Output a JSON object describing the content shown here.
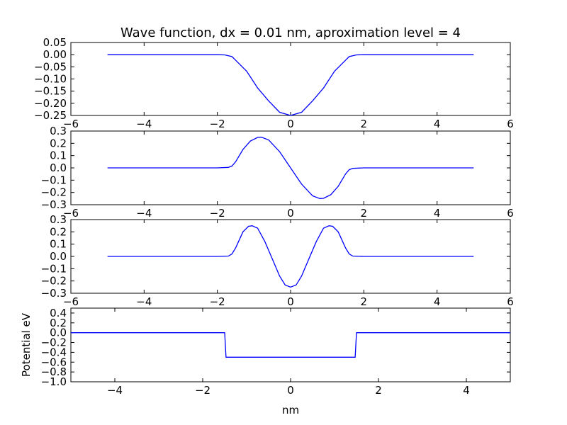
{
  "title": "Wave function, dx = 0.01 nm, aproximation level = 4",
  "colors": {
    "line": "#0000ff",
    "axes": "#000000",
    "background": "#ffffff"
  },
  "chart_data": [
    {
      "type": "line",
      "xlim": [
        -6,
        6
      ],
      "ylim": [
        -0.25,
        0.05
      ],
      "xticks": [
        -6,
        -4,
        -2,
        0,
        2,
        4,
        6
      ],
      "xtick_labels": [
        "−6",
        "−4",
        "−2",
        "0",
        "2",
        "4",
        "6"
      ],
      "yticks": [
        -0.25,
        -0.2,
        -0.15,
        -0.1,
        -0.05,
        0.0,
        0.05
      ],
      "ytick_labels": [
        "−0.25",
        "−0.20",
        "−0.15",
        "−0.10",
        "−0.05",
        "0.00",
        "0.05"
      ],
      "xlabel": "",
      "ylabel": "",
      "x": [
        -5,
        -4,
        -3,
        -2,
        -1.8,
        -1.6,
        -1.5,
        -1.2,
        -0.9,
        -0.6,
        -0.3,
        0,
        0.3,
        0.6,
        0.9,
        1.2,
        1.5,
        1.6,
        1.8,
        2,
        3,
        4,
        5
      ],
      "y": [
        0,
        0,
        0,
        0,
        -0.001,
        -0.008,
        -0.023,
        -0.068,
        -0.137,
        -0.19,
        -0.237,
        -0.25,
        -0.237,
        -0.19,
        -0.137,
        -0.068,
        -0.023,
        -0.008,
        -0.001,
        0,
        0,
        0,
        0
      ]
    },
    {
      "type": "line",
      "xlim": [
        -6,
        6
      ],
      "ylim": [
        -0.3,
        0.3
      ],
      "xticks": [
        -6,
        -4,
        -2,
        0,
        2,
        4,
        6
      ],
      "xtick_labels": [
        "−6",
        "−4",
        "−2",
        "0",
        "2",
        "4",
        "6"
      ],
      "yticks": [
        -0.3,
        -0.2,
        -0.1,
        0.0,
        0.1,
        0.2,
        0.3
      ],
      "ytick_labels": [
        "−0.3",
        "−0.2",
        "−0.1",
        "0.0",
        "0.1",
        "0.2",
        "0.3"
      ],
      "xlabel": "",
      "ylabel": "",
      "x": [
        -5,
        -4,
        -3,
        -2,
        -1.7,
        -1.6,
        -1.5,
        -1.3,
        -1.1,
        -0.9,
        -0.8,
        -0.6,
        -0.3,
        0,
        0.3,
        0.6,
        0.8,
        0.9,
        1.1,
        1.3,
        1.5,
        1.6,
        1.7,
        2,
        3,
        4,
        5
      ],
      "y": [
        0,
        0,
        0,
        0,
        0.004,
        0.015,
        0.05,
        0.15,
        0.218,
        0.248,
        0.25,
        0.228,
        0.132,
        0,
        -0.132,
        -0.228,
        -0.25,
        -0.248,
        -0.218,
        -0.15,
        -0.05,
        -0.015,
        -0.004,
        0,
        0,
        0,
        0
      ]
    },
    {
      "type": "line",
      "xlim": [
        -6,
        6
      ],
      "ylim": [
        -0.3,
        0.3
      ],
      "xticks": [
        -6,
        -4,
        -2,
        0,
        2,
        4,
        6
      ],
      "xtick_labels": [
        "−6",
        "−4",
        "−2",
        "0",
        "2",
        "4",
        "6"
      ],
      "yticks": [
        -0.3,
        -0.2,
        -0.1,
        0.0,
        0.1,
        0.2,
        0.3
      ],
      "ytick_labels": [
        "−0.3",
        "−0.2",
        "−0.1",
        "0.0",
        "0.1",
        "0.2",
        "0.3"
      ],
      "xlabel": "",
      "ylabel": "",
      "x": [
        -5,
        -4,
        -3,
        -2,
        -1.7,
        -1.6,
        -1.5,
        -1.3,
        -1.15,
        -1.05,
        -0.9,
        -0.7,
        -0.5,
        -0.3,
        -0.15,
        0,
        0.15,
        0.3,
        0.5,
        0.7,
        0.9,
        1.05,
        1.15,
        1.3,
        1.5,
        1.6,
        1.7,
        2,
        3,
        4,
        5
      ],
      "y": [
        0,
        0,
        0,
        0,
        0.003,
        0.02,
        0.07,
        0.2,
        0.245,
        0.25,
        0.23,
        0.12,
        -0.02,
        -0.16,
        -0.233,
        -0.25,
        -0.233,
        -0.16,
        -0.02,
        0.12,
        0.23,
        0.25,
        0.245,
        0.2,
        0.07,
        0.02,
        0.003,
        0,
        0,
        0,
        0
      ]
    },
    {
      "type": "line",
      "xlim": [
        -5,
        5
      ],
      "ylim": [
        -1.0,
        0.5
      ],
      "xticks": [
        -4,
        -2,
        0,
        2,
        4
      ],
      "xtick_labels": [
        "−4",
        "−2",
        "0",
        "2",
        "4"
      ],
      "yticks": [
        -1.0,
        -0.8,
        -0.6,
        -0.4,
        -0.2,
        0.0,
        0.2,
        0.4
      ],
      "ytick_labels": [
        "−1.0",
        "−0.8",
        "−0.6",
        "−0.4",
        "−0.2",
        "0.0",
        "0.2",
        "0.4"
      ],
      "xlabel": "nm",
      "ylabel": "Potential eV",
      "x": [
        -5,
        -1.5,
        -1.47,
        1.47,
        1.5,
        5
      ],
      "y": [
        0,
        0,
        -0.5,
        -0.5,
        0,
        0
      ]
    }
  ]
}
